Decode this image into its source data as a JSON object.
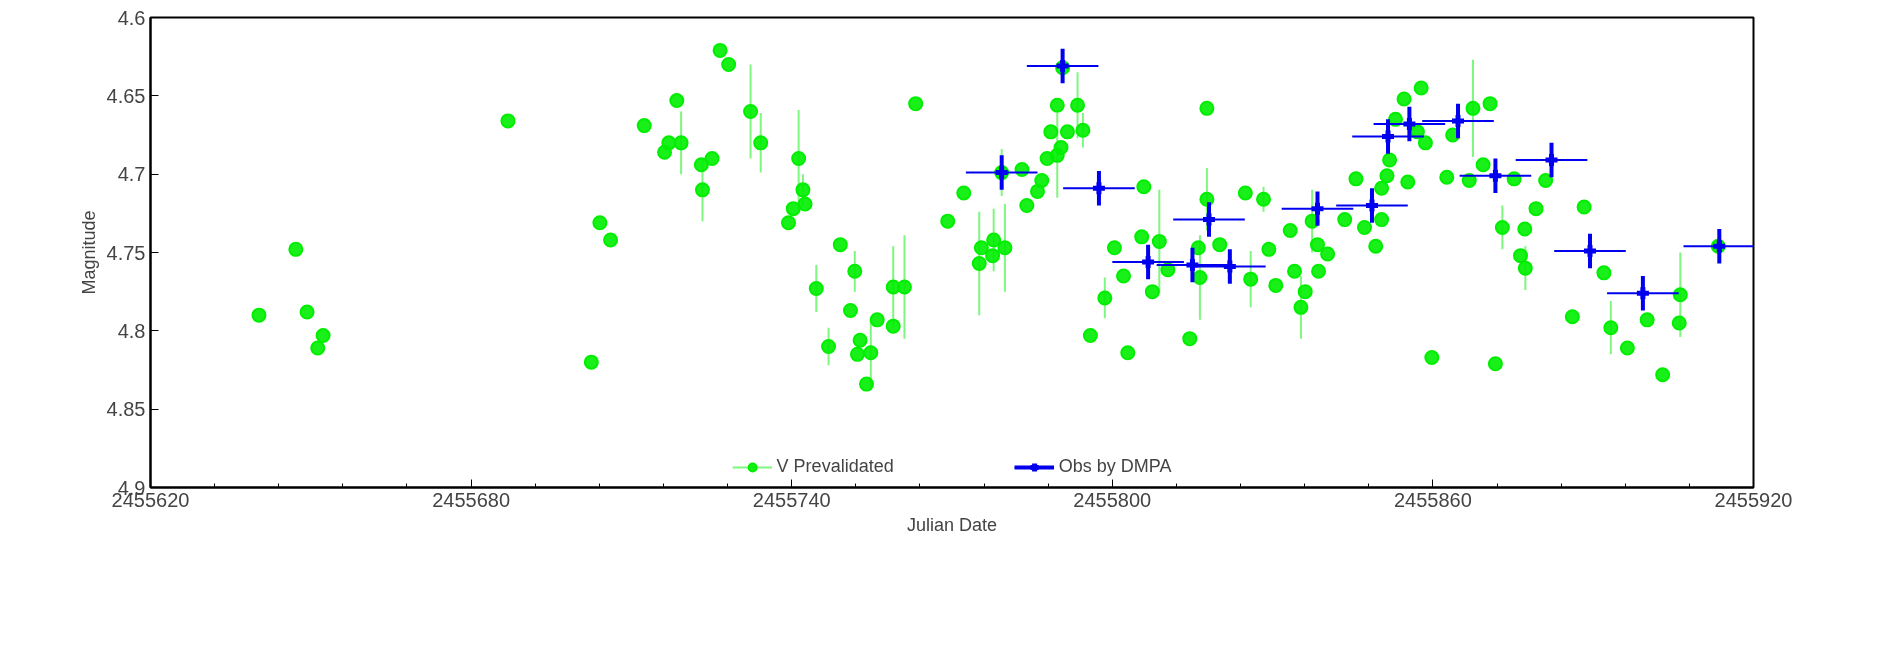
{
  "chart_data": {
    "type": "scatter",
    "xlabel": "Julian Date",
    "ylabel": "Magnitude",
    "xlim": [
      2455620,
      2455920
    ],
    "ylim": [
      4.9,
      4.6
    ],
    "xticks": [
      2455620,
      {
        "value": 2455632,
        "label": null
      },
      {
        "value": 2455644,
        "label": null
      },
      {
        "value": 2455656,
        "label": null
      },
      {
        "value": 2455668,
        "label": null
      },
      2455680,
      {
        "value": 2455692,
        "label": null
      },
      {
        "value": 2455704,
        "label": null
      },
      {
        "value": 2455716,
        "label": null
      },
      {
        "value": 2455728,
        "label": null
      },
      2455740,
      {
        "value": 2455752,
        "label": null
      },
      {
        "value": 2455764,
        "label": null
      },
      {
        "value": 2455776,
        "label": null
      },
      {
        "value": 2455788,
        "label": null
      },
      2455800,
      {
        "value": 2455812,
        "label": null
      },
      {
        "value": 2455824,
        "label": null
      },
      {
        "value": 2455836,
        "label": null
      },
      {
        "value": 2455848,
        "label": null
      },
      2455860,
      {
        "value": 2455872,
        "label": null
      },
      {
        "value": 2455884,
        "label": null
      },
      {
        "value": 2455896,
        "label": null
      },
      {
        "value": 2455908,
        "label": null
      },
      2455920
    ],
    "yticks": [
      4.6,
      4.65,
      4.7,
      4.75,
      4.8,
      4.85,
      4.9
    ],
    "grid": false,
    "legend": "bottom",
    "series": [
      {
        "name": "V Prevalidated",
        "color": "#00ee00",
        "marker": "circle",
        "x": [
          2455640.3,
          2455647.2,
          2455649.3,
          2455652.3,
          2455651.3,
          2455686.9,
          2455702.5,
          2455704.1,
          2455706.1,
          2455712.4,
          2455718.5,
          2455716.2,
          2455717.0,
          2455719.3,
          2455723.1,
          2455725.1,
          2455723.3,
          2455726.6,
          2455728.2,
          2455732.3,
          2455734.2,
          2455741.3,
          2455742.1,
          2455742.5,
          2455740.3,
          2455739.4,
          2455744.6,
          2455749.1,
          2455751.8,
          2455751.0,
          2455746.9,
          2455752.8,
          2455752.3,
          2455754.8,
          2455754.0,
          2455756.0,
          2455759.0,
          2455761.1,
          2455759.0,
          2455763.2,
          2455769.2,
          2455772.2,
          2455775.1,
          2455775.5,
          2455777.8,
          2455777.6,
          2455779.9,
          2455779.3,
          2455783.1,
          2455784.0,
          2455786.0,
          2455786.8,
          2455787.8,
          2455789.7,
          2455790.4,
          2455788.5,
          2455791.6,
          2455794.5,
          2455789.7,
          2455793.5,
          2455790.7,
          2455805.9,
          2455800.4,
          2455798.6,
          2455795.9,
          2455802.9,
          2455805.5,
          2455807.5,
          2455802.1,
          2455817.7,
          2455817.7,
          2455808.8,
          2455810.4,
          2455814.5,
          2455816.4,
          2455816.1,
          2455820.1,
          2455824.9,
          2455828.3,
          2455825.9,
          2455829.3,
          2455830.6,
          2455833.3,
          2455834.1,
          2455836.1,
          2455835.3,
          2455837.4,
          2455838.4,
          2455840.3,
          2455838.6,
          2455843.5,
          2455845.6,
          2455847.2,
          2455849.3,
          2455850.4,
          2455850.4,
          2455851.4,
          2455851.9,
          2455854.6,
          2455857.8,
          2455855.3,
          2455858.6,
          2455857.1,
          2455853.0,
          2455862.6,
          2455863.7,
          2455867.5,
          2455870.7,
          2455866.8,
          2455869.4,
          2455875.2,
          2455859.8,
          2455871.7,
          2455873.0,
          2455877.2,
          2455876.4,
          2455877.3,
          2455879.3,
          2455881.1,
          2455888.3,
          2455886.1,
          2455892.0,
          2455893.3,
          2455896.4,
          2455900.1,
          2455903.0,
          2455906.3,
          2455906.1,
          2455913.4
        ],
        "values": [
          4.79,
          4.748,
          4.788,
          4.803,
          4.811,
          4.666,
          4.82,
          4.731,
          4.742,
          4.669,
          4.653,
          4.686,
          4.68,
          4.68,
          4.694,
          4.69,
          4.71,
          4.621,
          4.63,
          4.66,
          4.68,
          4.69,
          4.71,
          4.719,
          4.722,
          4.731,
          4.773,
          4.745,
          4.762,
          4.787,
          4.81,
          4.806,
          4.815,
          4.814,
          4.834,
          4.793,
          4.772,
          4.772,
          4.797,
          4.655,
          4.73,
          4.712,
          4.757,
          4.747,
          4.742,
          4.752,
          4.747,
          4.699,
          4.697,
          4.72,
          4.711,
          4.704,
          4.69,
          4.688,
          4.683,
          4.673,
          4.673,
          4.672,
          4.656,
          4.656,
          4.632,
          4.708,
          4.747,
          4.779,
          4.803,
          4.814,
          4.74,
          4.775,
          4.765,
          4.658,
          4.716,
          4.743,
          4.761,
          4.805,
          4.766,
          4.747,
          4.745,
          4.712,
          4.716,
          4.767,
          4.748,
          4.771,
          4.736,
          4.762,
          4.775,
          4.785,
          4.73,
          4.745,
          4.751,
          4.762,
          4.729,
          4.703,
          4.734,
          4.746,
          4.729,
          4.709,
          4.701,
          4.691,
          4.652,
          4.645,
          4.705,
          4.68,
          4.673,
          4.665,
          4.702,
          4.675,
          4.658,
          4.655,
          4.704,
          4.694,
          4.703,
          4.817,
          4.821,
          4.734,
          4.735,
          4.752,
          4.76,
          4.722,
          4.704,
          4.721,
          4.791,
          4.763,
          4.798,
          4.811,
          4.793,
          4.828,
          4.777,
          4.795,
          4.746
        ],
        "errors": [
          null,
          null,
          null,
          null,
          null,
          null,
          null,
          null,
          null,
          null,
          null,
          null,
          null,
          0.02,
          null,
          null,
          0.02,
          null,
          null,
          0.03,
          0.019,
          0.031,
          0.01,
          null,
          null,
          null,
          0.015,
          null,
          0.013,
          null,
          0.012,
          null,
          null,
          0.021,
          null,
          null,
          0.026,
          0.033,
          null,
          null,
          null,
          null,
          0.033,
          null,
          0.02,
          null,
          0.028,
          0.015,
          null,
          null,
          null,
          null,
          null,
          0.027,
          null,
          null,
          null,
          0.011,
          null,
          0.021,
          null,
          null,
          null,
          0.013,
          null,
          null,
          null,
          null,
          null,
          null,
          0.02,
          0.033,
          null,
          null,
          0.027,
          null,
          null,
          null,
          0.008,
          0.018,
          null,
          null,
          null,
          null,
          null,
          0.02,
          0.02,
          null,
          null,
          null,
          null,
          null,
          null,
          null,
          null,
          null,
          null,
          null,
          null,
          null,
          null,
          null,
          null,
          null,
          null,
          null,
          0.031,
          null,
          null,
          null,
          null,
          null,
          null,
          0.014,
          null,
          null,
          0.014,
          null,
          null,
          null,
          null,
          null,
          0.017,
          null,
          null,
          null,
          0.027,
          null,
          null
        ]
      },
      {
        "name": "Obs by DMPA",
        "color": "#0000ee",
        "marker": "cross",
        "x": [
          2455779.3,
          2455790.7,
          2455797.5,
          2455806.7,
          2455815.0,
          2455822.0,
          2455818.1,
          2455838.4,
          2455848.6,
          2455851.6,
          2455855.6,
          2455864.7,
          2455871.7,
          2455882.2,
          2455889.4,
          2455899.3,
          2455913.6
        ],
        "values": [
          4.699,
          4.631,
          4.709,
          4.756,
          4.758,
          4.759,
          4.729,
          4.722,
          4.72,
          4.676,
          4.668,
          4.666,
          4.701,
          4.691,
          4.749,
          4.776,
          4.746
        ],
        "errors": [
          0.011,
          0.011,
          0.011,
          0.011,
          0.011,
          0.011,
          0.011,
          0.011,
          0.011,
          0.011,
          0.011,
          0.011,
          0.011,
          0.011,
          0.011,
          0.011,
          0.011
        ],
        "xerrors": [
          6.7,
          6.7,
          6.7,
          6.7,
          6.7,
          6.7,
          6.7,
          6.7,
          6.7,
          6.7,
          6.7,
          6.7,
          6.7,
          6.7,
          6.7,
          6.7,
          6.7
        ]
      }
    ]
  }
}
